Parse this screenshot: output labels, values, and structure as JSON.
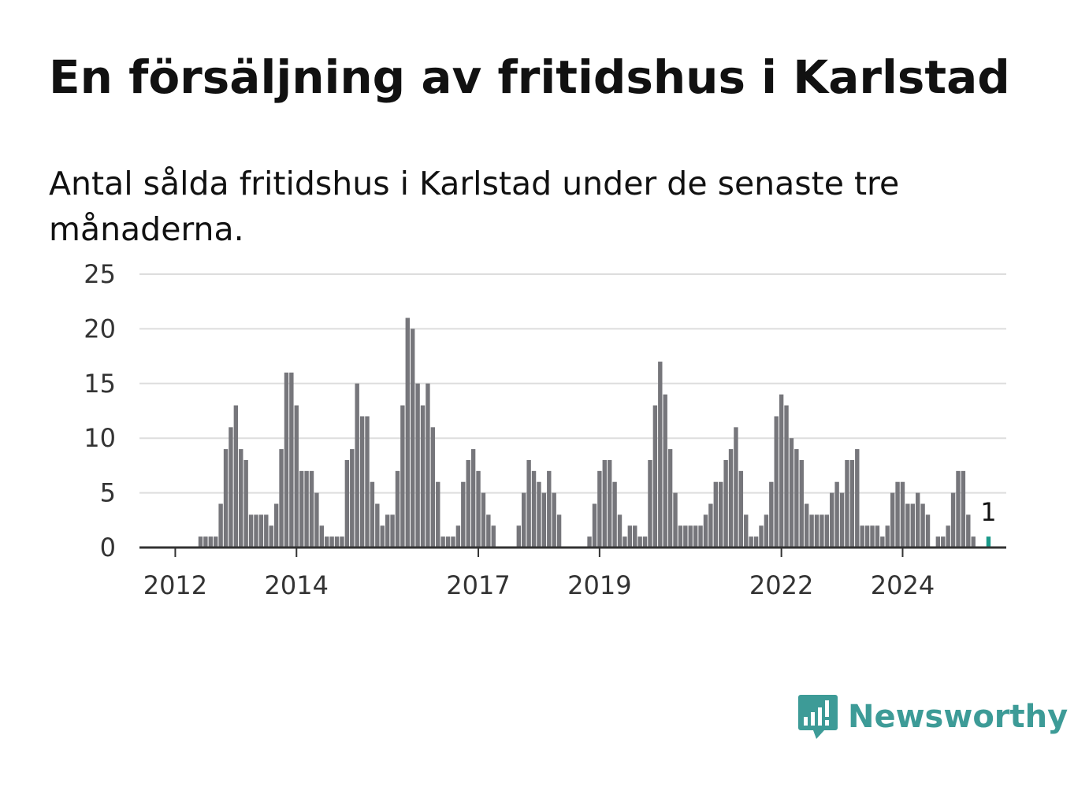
{
  "title": "En försäljning av fritidshus i Karlstad",
  "subtitle": "Antal sålda fritidshus i Karlstad under de senaste tre månaderna.",
  "logo": {
    "text": "Newsworthy",
    "icon": "newsworthy-chart-icon",
    "color": "#3d9b97"
  },
  "colors": {
    "bar": "#76767b",
    "highlight": "#1a9a8a",
    "grid": "#dddddd",
    "axis": "#333333"
  },
  "chart_data": {
    "type": "bar",
    "ylim": [
      0,
      25
    ],
    "yticks": [
      "0",
      "5",
      "10",
      "15",
      "20",
      "25"
    ],
    "xticks": [
      {
        "label": "2012",
        "index": 3
      },
      {
        "label": "2014",
        "index": 27
      },
      {
        "label": "2017",
        "index": 63
      },
      {
        "label": "2019",
        "index": 87
      },
      {
        "label": "2022",
        "index": 123
      },
      {
        "label": "2024",
        "index": 147
      }
    ],
    "start_month": "2011-07",
    "values": [
      0,
      0,
      0,
      0,
      0,
      0,
      0,
      0,
      1,
      1,
      1,
      1,
      4,
      9,
      11,
      13,
      9,
      8,
      3,
      3,
      3,
      3,
      2,
      4,
      9,
      16,
      16,
      13,
      7,
      7,
      7,
      5,
      2,
      1,
      1,
      1,
      1,
      8,
      9,
      15,
      12,
      12,
      6,
      4,
      2,
      3,
      3,
      7,
      13,
      21,
      20,
      15,
      13,
      15,
      11,
      6,
      1,
      1,
      1,
      2,
      6,
      8,
      9,
      7,
      5,
      3,
      2,
      0,
      0,
      0,
      0,
      2,
      5,
      8,
      7,
      6,
      5,
      7,
      5,
      3,
      0,
      0,
      0,
      0,
      0,
      1,
      4,
      7,
      8,
      8,
      6,
      3,
      1,
      2,
      2,
      1,
      1,
      8,
      13,
      17,
      14,
      9,
      5,
      2,
      2,
      2,
      2,
      2,
      3,
      4,
      6,
      6,
      8,
      9,
      11,
      7,
      3,
      1,
      1,
      2,
      3,
      6,
      12,
      14,
      13,
      10,
      9,
      8,
      4,
      3,
      3,
      3,
      3,
      5,
      6,
      5,
      8,
      8,
      9,
      2,
      2,
      2,
      2,
      1,
      2,
      5,
      6,
      6,
      4,
      4,
      5,
      4,
      3,
      0,
      1,
      1,
      2,
      5,
      7,
      7,
      3,
      1,
      0,
      0,
      1
    ],
    "highlight_last": true,
    "last_label": "1"
  }
}
